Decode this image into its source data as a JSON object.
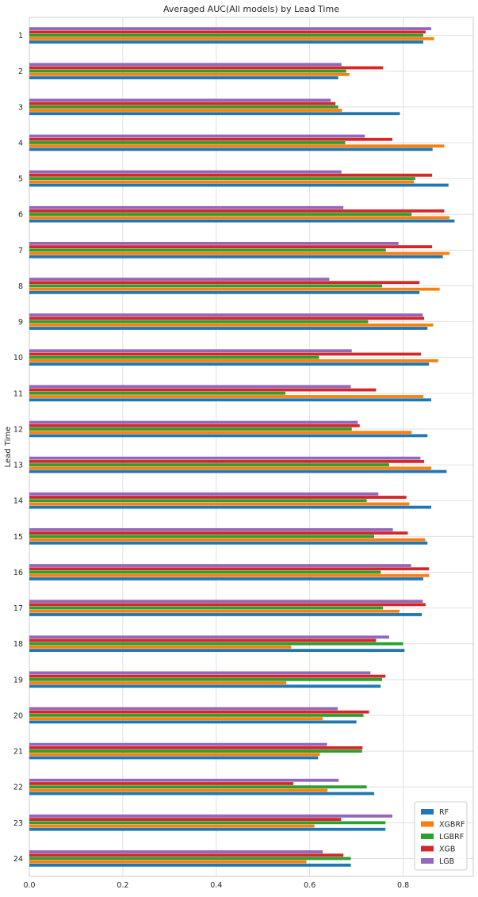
{
  "chart_data": {
    "type": "bar",
    "orientation": "horizontal",
    "title": "Averaged AUC(All models) by Lead Time",
    "xlabel": "",
    "ylabel": "Lead Time",
    "xlim": [
      0,
      0.95
    ],
    "xticks": [
      0.0,
      0.2,
      0.4,
      0.6,
      0.8
    ],
    "xtick_labels": [
      "0.0",
      "0.2",
      "0.4",
      "0.6",
      "0.8"
    ],
    "grid": true,
    "legend_position": "bottom-right",
    "categories": [
      "1",
      "2",
      "3",
      "4",
      "5",
      "6",
      "7",
      "8",
      "9",
      "10",
      "11",
      "12",
      "13",
      "14",
      "15",
      "16",
      "17",
      "18",
      "19",
      "20",
      "21",
      "22",
      "23",
      "24"
    ],
    "series": [
      {
        "name": "RF",
        "color": "#1f77b4",
        "values": [
          0.843,
          0.661,
          0.793,
          0.863,
          0.897,
          0.91,
          0.885,
          0.835,
          0.852,
          0.855,
          0.86,
          0.852,
          0.893,
          0.86,
          0.852,
          0.843,
          0.84,
          0.803,
          0.752,
          0.7,
          0.618,
          0.738,
          0.762,
          0.688
        ]
      },
      {
        "name": "XGBRF",
        "color": "#ff7f0e",
        "values": [
          0.866,
          0.685,
          0.669,
          0.888,
          0.823,
          0.899,
          0.899,
          0.878,
          0.864,
          0.875,
          0.843,
          0.818,
          0.86,
          0.813,
          0.847,
          0.855,
          0.792,
          0.56,
          0.55,
          0.628,
          0.622,
          0.638,
          0.61,
          0.593
        ]
      },
      {
        "name": "LGBRF",
        "color": "#2ca02c",
        "values": [
          0.843,
          0.678,
          0.661,
          0.676,
          0.826,
          0.818,
          0.763,
          0.755,
          0.725,
          0.62,
          0.548,
          0.69,
          0.77,
          0.722,
          0.738,
          0.752,
          0.757,
          0.8,
          0.755,
          0.715,
          0.712,
          0.722,
          0.762,
          0.688
        ]
      },
      {
        "name": "XGB",
        "color": "#d62728",
        "values": [
          0.848,
          0.757,
          0.655,
          0.777,
          0.862,
          0.888,
          0.862,
          0.835,
          0.845,
          0.838,
          0.742,
          0.707,
          0.845,
          0.807,
          0.81,
          0.855,
          0.848,
          0.742,
          0.762,
          0.727,
          0.713,
          0.565,
          0.667,
          0.672
        ]
      },
      {
        "name": "LGB",
        "color": "#9467bd",
        "values": [
          0.86,
          0.668,
          0.645,
          0.718,
          0.668,
          0.672,
          0.79,
          0.642,
          0.842,
          0.69,
          0.688,
          0.703,
          0.837,
          0.747,
          0.778,
          0.817,
          0.842,
          0.77,
          0.73,
          0.66,
          0.637,
          0.662,
          0.777,
          0.628
        ]
      }
    ]
  }
}
